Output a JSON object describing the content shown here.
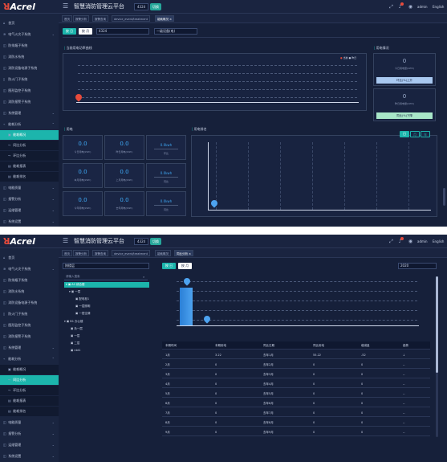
{
  "header": {
    "logo_text": "Acrel",
    "title": "智慧消防管理云平台",
    "project": "4324",
    "project_badge": "切换",
    "user": "admin",
    "lang": "English"
  },
  "sidebar": {
    "items": [
      {
        "label": "首页",
        "icon": "home-icon"
      },
      {
        "label": "电气火灾子系统",
        "icon": "fire-icon"
      },
      {
        "label": "防排烟子系统",
        "icon": "fan-icon"
      },
      {
        "label": "消防水系统",
        "icon": "water-icon"
      },
      {
        "label": "消防设备电源子系统",
        "icon": "power-icon"
      },
      {
        "label": "防火门子系统",
        "icon": "door-icon"
      },
      {
        "label": "图形监控子系统",
        "icon": "monitor-icon"
      },
      {
        "label": "消防报警子系统",
        "icon": "alarm-icon"
      },
      {
        "label": "系统管理",
        "icon": "system-icon"
      },
      {
        "label": "能耗分析",
        "icon": "chart-icon"
      },
      {
        "label": "能耗概况",
        "icon": "overview-icon"
      },
      {
        "label": "同比分析",
        "icon": "compare-icon"
      },
      {
        "label": "环比分析",
        "icon": "ring-icon"
      },
      {
        "label": "能耗报表",
        "icon": "report-icon"
      },
      {
        "label": "能耗排名",
        "icon": "rank-icon"
      },
      {
        "label": "电能质量",
        "icon": "quality-icon"
      },
      {
        "label": "报警分析",
        "icon": "warn-icon"
      },
      {
        "label": "运维管理",
        "icon": "maint-icon"
      },
      {
        "label": "系统设置",
        "icon": "settings-icon"
      }
    ]
  },
  "screen1": {
    "tabs": [
      "首页",
      "报警分析",
      "报警查询",
      "device_event/treatment",
      "能耗概况"
    ],
    "btn_day": "按 日",
    "btn_month": "按 月",
    "select_value": "4324",
    "date_value": "一级设备(电)",
    "chart1_title": "当前用电功率曲线",
    "legend": [
      "当前",
      "昨日"
    ],
    "stats_title": "用电情况",
    "stats": [
      {
        "value": "0",
        "label": "今日用电量(kWh)"
      },
      {
        "value": "0",
        "label": "昨日用电量(kWh)"
      }
    ],
    "stat_btns": [
      "环比(%)上升",
      "同比(%)下降"
    ],
    "energy_title": "用电",
    "cards": [
      {
        "value": "0.0",
        "label": "今日用电(kWh)"
      },
      {
        "value": "0.0",
        "label": "昨日用电(kWh)"
      },
      {
        "value": "0.0",
        "label": "本月用电(kWh)"
      },
      {
        "value": "0.0",
        "label": "上月用电(kWh)"
      },
      {
        "value": "0.0",
        "label": "今年用电(kWh)"
      },
      {
        "value": "0.0",
        "label": "去年用电(kWh)"
      }
    ],
    "side_cards": [
      {
        "value": "0.0kwh",
        "label": "环比"
      },
      {
        "value": "0.0kwh",
        "label": "同比"
      },
      {
        "value": "0.0kwh",
        "label": "同比"
      }
    ],
    "chart2_title": "用电排名",
    "chart2_btns": [
      "日",
      "月",
      "年"
    ]
  },
  "screen2": {
    "tabs": [
      "首页",
      "报警分析",
      "报警查询",
      "device_event/treatment",
      "能耗概况",
      "同比分析"
    ],
    "tree_select": "按楼层",
    "tree_search": "请输入搜索",
    "tree": [
      {
        "label": "A1 综合楼",
        "level": 0,
        "selected": true
      },
      {
        "label": "一层",
        "level": 1
      },
      {
        "label": "配电柜1",
        "level": 2
      },
      {
        "label": "一层照明",
        "level": 2
      },
      {
        "label": "一层空调",
        "level": 2
      },
      {
        "label": "B1 办公楼",
        "level": 0
      },
      {
        "label": "负一层",
        "level": 1
      },
      {
        "label": "一层",
        "level": 1
      },
      {
        "label": "二层",
        "level": 1
      },
      {
        "label": "nbt1",
        "level": 1
      }
    ],
    "btn_day": "按 日",
    "btn_month": "按 月",
    "year": "2020",
    "table_headers": [
      "本期时间",
      "本期用电",
      "同比日期",
      "同比用电",
      "增减量",
      "趋势"
    ],
    "table_rows": [
      [
        "1月",
        "3.22",
        "去年1月",
        "55.22",
        "-52",
        "↓"
      ],
      [
        "2月",
        "0",
        "去年2月",
        "0",
        "0",
        "--"
      ],
      [
        "3月",
        "0",
        "去年3月",
        "0",
        "0",
        "--"
      ],
      [
        "4月",
        "0",
        "去年4月",
        "0",
        "0",
        "--"
      ],
      [
        "5月",
        "0",
        "去年5月",
        "0",
        "0",
        "--"
      ],
      [
        "6月",
        "0",
        "去年6月",
        "0",
        "0",
        "--"
      ],
      [
        "7月",
        "0",
        "去年7月",
        "0",
        "0",
        "--"
      ],
      [
        "8月",
        "0",
        "去年8月",
        "0",
        "0",
        "--"
      ],
      [
        "9月",
        "0",
        "去年9月",
        "0",
        "0",
        "--"
      ]
    ]
  },
  "colors": {
    "accent": "#1cb5ac",
    "background": "#16203a",
    "bar": "#3a8ee6",
    "alarm": "#e74a3b"
  }
}
